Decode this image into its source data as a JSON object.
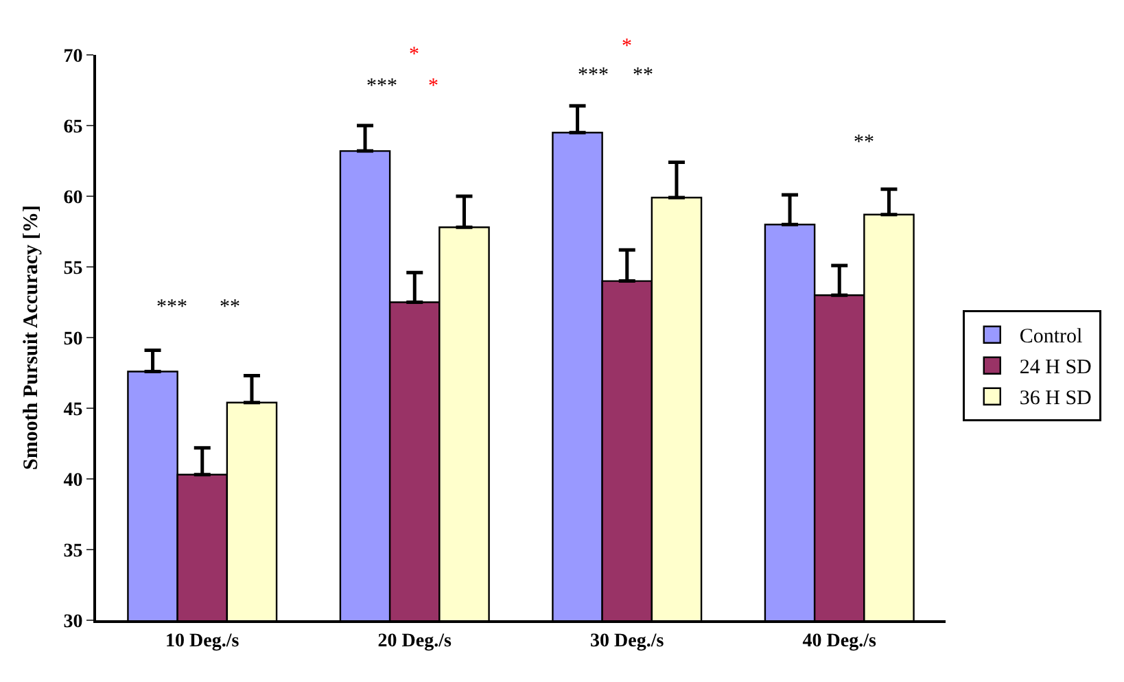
{
  "chart_data": {
    "type": "bar",
    "ylabel": "Smooth Pursuit Accuracy [%]",
    "categories": [
      "10 Deg./s",
      "20 Deg./s",
      "30 Deg./s",
      "40 Deg./s"
    ],
    "series": [
      {
        "name": "Control",
        "color": "#9999ff",
        "values": [
          47.6,
          63.2,
          64.5,
          58.0
        ],
        "errors": [
          [
            47.6,
            49.1
          ],
          [
            63.2,
            65.0
          ],
          [
            64.5,
            66.4
          ],
          [
            58.0,
            60.1
          ]
        ]
      },
      {
        "name": "24 H SD",
        "color": "#993366",
        "values": [
          40.3,
          52.5,
          54.0,
          53.0
        ],
        "errors": [
          [
            40.3,
            42.2
          ],
          [
            52.5,
            54.6
          ],
          [
            54.0,
            56.2
          ],
          [
            53.0,
            55.1
          ]
        ]
      },
      {
        "name": "36 H SD",
        "color": "#ffffcc",
        "values": [
          45.4,
          57.8,
          59.9,
          58.7
        ],
        "errors": [
          [
            45.4,
            47.3
          ],
          [
            57.8,
            60.0
          ],
          [
            59.9,
            62.4
          ],
          [
            58.7,
            60.5
          ]
        ]
      }
    ],
    "ylim": [
      30,
      70
    ],
    "yticks": [
      30,
      35,
      40,
      45,
      50,
      55,
      60,
      65,
      70
    ],
    "grid": false,
    "legend": "right",
    "annotations": [
      "***",
      "**",
      "*",
      "***",
      "*",
      "*",
      "***",
      "**",
      "**"
    ]
  }
}
